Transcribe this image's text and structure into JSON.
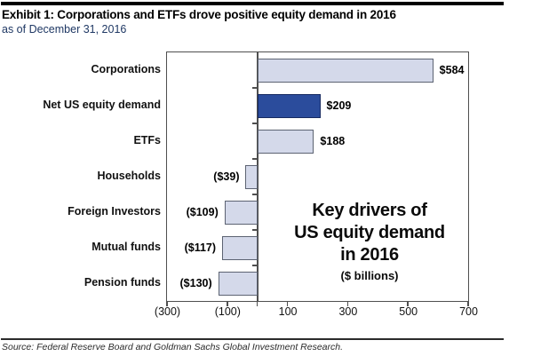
{
  "header": {
    "title": "Exhibit 1: Corporations and ETFs drove positive equity demand in 2016",
    "subtitle": "as of December 31, 2016"
  },
  "annotation": {
    "line1": "Key drivers of",
    "line2": "US equity demand",
    "line3": "in 2016",
    "units": "($ billions)"
  },
  "footer": {
    "source": "Source: Federal Reserve Board and Goldman Sachs Global Investment Research."
  },
  "colors": {
    "bar_light": "#d4d9ea",
    "bar_light_border": "#5c6372",
    "bar_dark": "#2b4c9c",
    "bar_dark_border": "#172a61",
    "axis": "#4f4f4f",
    "subtitle_text": "#1f3864"
  },
  "chart_data": {
    "type": "bar",
    "orientation": "horizontal",
    "title": "Key drivers of US equity demand in 2016 ($ billions)",
    "categories": [
      "Corporations",
      "Net US equity demand",
      "ETFs",
      "Households",
      "Foreign Investors",
      "Mutual funds",
      "Pension funds"
    ],
    "values": [
      584,
      209,
      188,
      -39,
      -109,
      -117,
      -130
    ],
    "value_labels": [
      "$584",
      "$209",
      "$188",
      "($39)",
      "($109)",
      "($117)",
      "($130)"
    ],
    "highlight_index": 1,
    "x_axis": {
      "min": -300,
      "max": 700,
      "ticks": [
        -300,
        -100,
        100,
        300,
        500,
        700
      ],
      "tick_labels": [
        "(300)",
        "(100)",
        "100",
        "300",
        "500",
        "700"
      ]
    },
    "grid": false,
    "legend": false
  }
}
